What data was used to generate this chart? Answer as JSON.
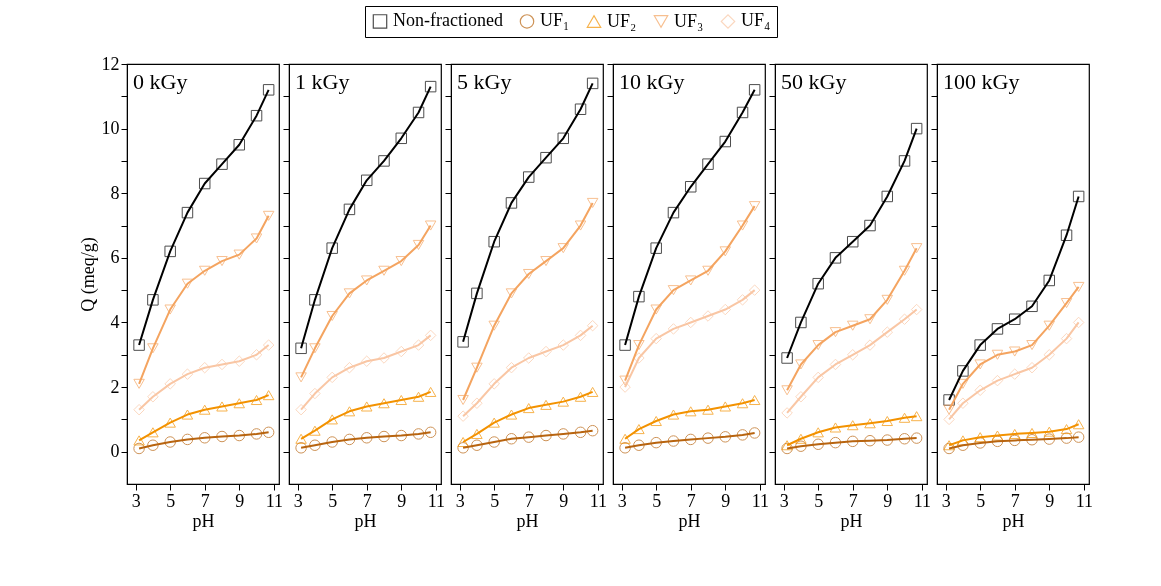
{
  "chart_data": [
    {
      "type": "line",
      "title": "0 kGy",
      "xlabel": "pH",
      "ylabel": "Q (meq/g)",
      "legend": "top",
      "xlim": [
        2.5,
        11.3
      ],
      "xticks": [
        3,
        5,
        7,
        9,
        11
      ],
      "ylim": [
        -1,
        12
      ],
      "yticks": [
        0,
        {
          "value": 1,
          "label": null
        },
        2,
        {
          "value": 3,
          "label": null
        },
        4,
        {
          "value": 5,
          "label": null
        },
        6,
        {
          "value": 7,
          "label": null
        },
        8,
        {
          "value": 9,
          "label": null
        },
        10,
        {
          "value": 11,
          "label": null
        },
        12
      ],
      "x": [
        3.2,
        4,
        5,
        6,
        7,
        8,
        9,
        10,
        10.7
      ],
      "series": [
        {
          "name": "Non-fractioned",
          "color": "#000000",
          "marker": "square",
          "values": [
            3.3,
            4.7,
            6.2,
            7.4,
            8.3,
            8.9,
            9.5,
            10.4,
            11.2
          ]
        },
        {
          "name": "UF₁",
          "color": "#b8640f",
          "marker": "circle",
          "values": [
            0.1,
            0.2,
            0.3,
            0.38,
            0.43,
            0.47,
            0.5,
            0.55,
            0.6
          ]
        },
        {
          "name": "UF₂",
          "color": "#f39200",
          "marker": "triangle",
          "values": [
            0.35,
            0.6,
            0.9,
            1.15,
            1.3,
            1.4,
            1.5,
            1.6,
            1.75
          ]
        },
        {
          "name": "UF₃",
          "color": "#f4a460",
          "marker": "triangle-down",
          "values": [
            2.1,
            3.2,
            4.4,
            5.2,
            5.6,
            5.9,
            6.1,
            6.6,
            7.3
          ]
        },
        {
          "name": "UF₄",
          "color": "#f9c6a4",
          "marker": "diamond",
          "values": [
            1.3,
            1.7,
            2.1,
            2.4,
            2.6,
            2.7,
            2.8,
            3.0,
            3.3
          ]
        }
      ]
    },
    {
      "type": "line",
      "title": "1 kGy",
      "xlabel": "pH",
      "tick_labels": "x",
      "xlim": [
        2.5,
        11.3
      ],
      "xticks": [
        3,
        5,
        7,
        9,
        11
      ],
      "ylim": [
        -1,
        12
      ],
      "yticks": [
        0,
        {
          "value": 1,
          "label": null
        },
        2,
        {
          "value": 3,
          "label": null
        },
        4,
        {
          "value": 5,
          "label": null
        },
        6,
        {
          "value": 7,
          "label": null
        },
        8,
        {
          "value": 9,
          "label": null
        },
        10,
        {
          "value": 11,
          "label": null
        },
        12
      ],
      "x": [
        3.2,
        4,
        5,
        6,
        7,
        8,
        9,
        10,
        10.7
      ],
      "series": [
        {
          "name": "Non-fractioned",
          "color": "#000000",
          "marker": "square",
          "values": [
            3.2,
            4.7,
            6.3,
            7.5,
            8.4,
            9.0,
            9.7,
            10.5,
            11.3
          ]
        },
        {
          "name": "UF₁",
          "color": "#b8640f",
          "marker": "circle",
          "values": [
            0.12,
            0.2,
            0.3,
            0.38,
            0.43,
            0.47,
            0.5,
            0.55,
            0.6
          ]
        },
        {
          "name": "UF₂",
          "color": "#f39200",
          "marker": "triangle",
          "values": [
            0.4,
            0.65,
            1.0,
            1.25,
            1.4,
            1.5,
            1.6,
            1.7,
            1.85
          ]
        },
        {
          "name": "UF₃",
          "color": "#f4a460",
          "marker": "triangle-down",
          "values": [
            2.3,
            3.2,
            4.2,
            4.9,
            5.3,
            5.6,
            5.9,
            6.4,
            7.0
          ]
        },
        {
          "name": "UF₄",
          "color": "#f9c6a4",
          "marker": "diamond",
          "values": [
            1.3,
            1.8,
            2.3,
            2.6,
            2.8,
            2.9,
            3.1,
            3.3,
            3.6
          ]
        }
      ]
    },
    {
      "type": "line",
      "title": "5 kGy",
      "xlabel": "pH",
      "tick_labels": "x",
      "xlim": [
        2.5,
        11.3
      ],
      "xticks": [
        3,
        5,
        7,
        9,
        11
      ],
      "ylim": [
        -1,
        12
      ],
      "yticks": [
        0,
        {
          "value": 1,
          "label": null
        },
        2,
        {
          "value": 3,
          "label": null
        },
        4,
        {
          "value": 5,
          "label": null
        },
        6,
        {
          "value": 7,
          "label": null
        },
        8,
        {
          "value": 9,
          "label": null
        },
        10,
        {
          "value": 11,
          "label": null
        },
        12
      ],
      "x": [
        3.2,
        4,
        5,
        6,
        7,
        8,
        9,
        10,
        10.7
      ],
      "series": [
        {
          "name": "Non-fractioned",
          "color": "#000000",
          "marker": "square",
          "values": [
            3.4,
            4.9,
            6.5,
            7.7,
            8.5,
            9.1,
            9.7,
            10.6,
            11.4
          ]
        },
        {
          "name": "UF₁",
          "color": "#b8640f",
          "marker": "circle",
          "values": [
            0.12,
            0.2,
            0.3,
            0.4,
            0.45,
            0.5,
            0.55,
            0.6,
            0.65
          ]
        },
        {
          "name": "UF₂",
          "color": "#f39200",
          "marker": "triangle",
          "values": [
            0.3,
            0.55,
            0.9,
            1.15,
            1.35,
            1.45,
            1.55,
            1.7,
            1.85
          ]
        },
        {
          "name": "UF₃",
          "color": "#f4a460",
          "marker": "triangle-down",
          "values": [
            1.6,
            2.6,
            3.9,
            4.9,
            5.5,
            5.9,
            6.3,
            7.0,
            7.7
          ]
        },
        {
          "name": "UF₄",
          "color": "#f9c6a4",
          "marker": "diamond",
          "values": [
            1.1,
            1.5,
            2.1,
            2.6,
            2.9,
            3.1,
            3.3,
            3.6,
            3.9
          ]
        }
      ]
    },
    {
      "type": "line",
      "title": "10 kGy",
      "xlabel": "pH",
      "tick_labels": "x",
      "xlim": [
        2.5,
        11.3
      ],
      "xticks": [
        3,
        5,
        7,
        9,
        11
      ],
      "ylim": [
        -1,
        12
      ],
      "yticks": [
        0,
        {
          "value": 1,
          "label": null
        },
        2,
        {
          "value": 3,
          "label": null
        },
        4,
        {
          "value": 5,
          "label": null
        },
        6,
        {
          "value": 7,
          "label": null
        },
        8,
        {
          "value": 9,
          "label": null
        },
        10,
        {
          "value": 11,
          "label": null
        },
        12
      ],
      "x": [
        3.2,
        4,
        5,
        6,
        7,
        8,
        9,
        10,
        10.7
      ],
      "series": [
        {
          "name": "Non-fractioned",
          "color": "#000000",
          "marker": "square",
          "values": [
            3.3,
            4.8,
            6.3,
            7.4,
            8.2,
            8.9,
            9.6,
            10.5,
            11.2
          ]
        },
        {
          "name": "UF₁",
          "color": "#b8640f",
          "marker": "circle",
          "values": [
            0.12,
            0.2,
            0.28,
            0.33,
            0.38,
            0.42,
            0.46,
            0.52,
            0.58
          ]
        },
        {
          "name": "UF₂",
          "color": "#f39200",
          "marker": "triangle",
          "values": [
            0.4,
            0.7,
            0.95,
            1.15,
            1.25,
            1.3,
            1.4,
            1.5,
            1.6
          ]
        },
        {
          "name": "UF₃",
          "color": "#f4a460",
          "marker": "triangle-down",
          "values": [
            2.2,
            3.3,
            4.4,
            5.0,
            5.3,
            5.6,
            6.2,
            7.0,
            7.6
          ]
        },
        {
          "name": "UF₄",
          "color": "#f9c6a4",
          "marker": "diamond",
          "values": [
            2.0,
            2.9,
            3.5,
            3.8,
            4.0,
            4.2,
            4.4,
            4.7,
            5.0
          ]
        }
      ]
    },
    {
      "type": "line",
      "title": "50 kGy",
      "xlabel": "pH",
      "tick_labels": "x",
      "xlim": [
        2.5,
        11.3
      ],
      "xticks": [
        3,
        5,
        7,
        9,
        11
      ],
      "ylim": [
        -1,
        12
      ],
      "yticks": [
        0,
        {
          "value": 1,
          "label": null
        },
        2,
        {
          "value": 3,
          "label": null
        },
        4,
        {
          "value": 5,
          "label": null
        },
        6,
        {
          "value": 7,
          "label": null
        },
        8,
        {
          "value": 9,
          "label": null
        },
        10,
        {
          "value": 11,
          "label": null
        },
        12
      ],
      "x": [
        3.2,
        4,
        5,
        6,
        7,
        8,
        9,
        10,
        10.7
      ],
      "series": [
        {
          "name": "Non-fractioned",
          "color": "#000000",
          "marker": "square",
          "values": [
            2.9,
            4.0,
            5.2,
            6.0,
            6.5,
            7.0,
            7.9,
            9.0,
            10.0
          ]
        },
        {
          "name": "UF₁",
          "color": "#b8640f",
          "marker": "circle",
          "values": [
            0.1,
            0.17,
            0.23,
            0.28,
            0.32,
            0.34,
            0.36,
            0.4,
            0.42
          ]
        },
        {
          "name": "UF₂",
          "color": "#f39200",
          "marker": "triangle",
          "values": [
            0.2,
            0.4,
            0.6,
            0.75,
            0.82,
            0.88,
            0.95,
            1.05,
            1.1
          ]
        },
        {
          "name": "UF₃",
          "color": "#f4a460",
          "marker": "triangle-down",
          "values": [
            1.9,
            2.7,
            3.3,
            3.7,
            3.9,
            4.1,
            4.7,
            5.6,
            6.3
          ]
        },
        {
          "name": "UF₄",
          "color": "#f9c6a4",
          "marker": "diamond",
          "values": [
            1.2,
            1.7,
            2.3,
            2.7,
            3.0,
            3.3,
            3.7,
            4.1,
            4.4
          ]
        }
      ]
    },
    {
      "type": "line",
      "title": "100 kGy",
      "xlabel": "pH",
      "tick_labels": "x",
      "xlim": [
        2.5,
        11.3
      ],
      "xticks": [
        3,
        5,
        7,
        9,
        11
      ],
      "ylim": [
        -1,
        12
      ],
      "yticks": [
        0,
        {
          "value": 1,
          "label": null
        },
        2,
        {
          "value": 3,
          "label": null
        },
        4,
        {
          "value": 5,
          "label": null
        },
        6,
        {
          "value": 7,
          "label": null
        },
        8,
        {
          "value": 9,
          "label": null
        },
        10,
        {
          "value": 11,
          "label": null
        },
        12
      ],
      "x": [
        3.2,
        4,
        5,
        6,
        7,
        8,
        9,
        10,
        10.7
      ],
      "series": [
        {
          "name": "Non-fractioned",
          "color": "#000000",
          "marker": "square",
          "values": [
            1.6,
            2.5,
            3.3,
            3.8,
            4.1,
            4.5,
            5.3,
            6.7,
            7.9
          ]
        },
        {
          "name": "UF₁",
          "color": "#b8640f",
          "marker": "circle",
          "values": [
            0.1,
            0.2,
            0.27,
            0.32,
            0.35,
            0.37,
            0.39,
            0.42,
            0.45
          ]
        },
        {
          "name": "UF₂",
          "color": "#f39200",
          "marker": "triangle",
          "values": [
            0.2,
            0.35,
            0.45,
            0.5,
            0.55,
            0.58,
            0.62,
            0.7,
            0.85
          ]
        },
        {
          "name": "UF₃",
          "color": "#f4a460",
          "marker": "triangle-down",
          "values": [
            1.3,
            2.1,
            2.7,
            3.0,
            3.1,
            3.3,
            3.9,
            4.6,
            5.1
          ]
        },
        {
          "name": "UF₄",
          "color": "#f9c6a4",
          "marker": "diamond",
          "values": [
            1.0,
            1.5,
            1.9,
            2.2,
            2.4,
            2.6,
            3.0,
            3.5,
            4.0
          ]
        }
      ]
    }
  ]
}
